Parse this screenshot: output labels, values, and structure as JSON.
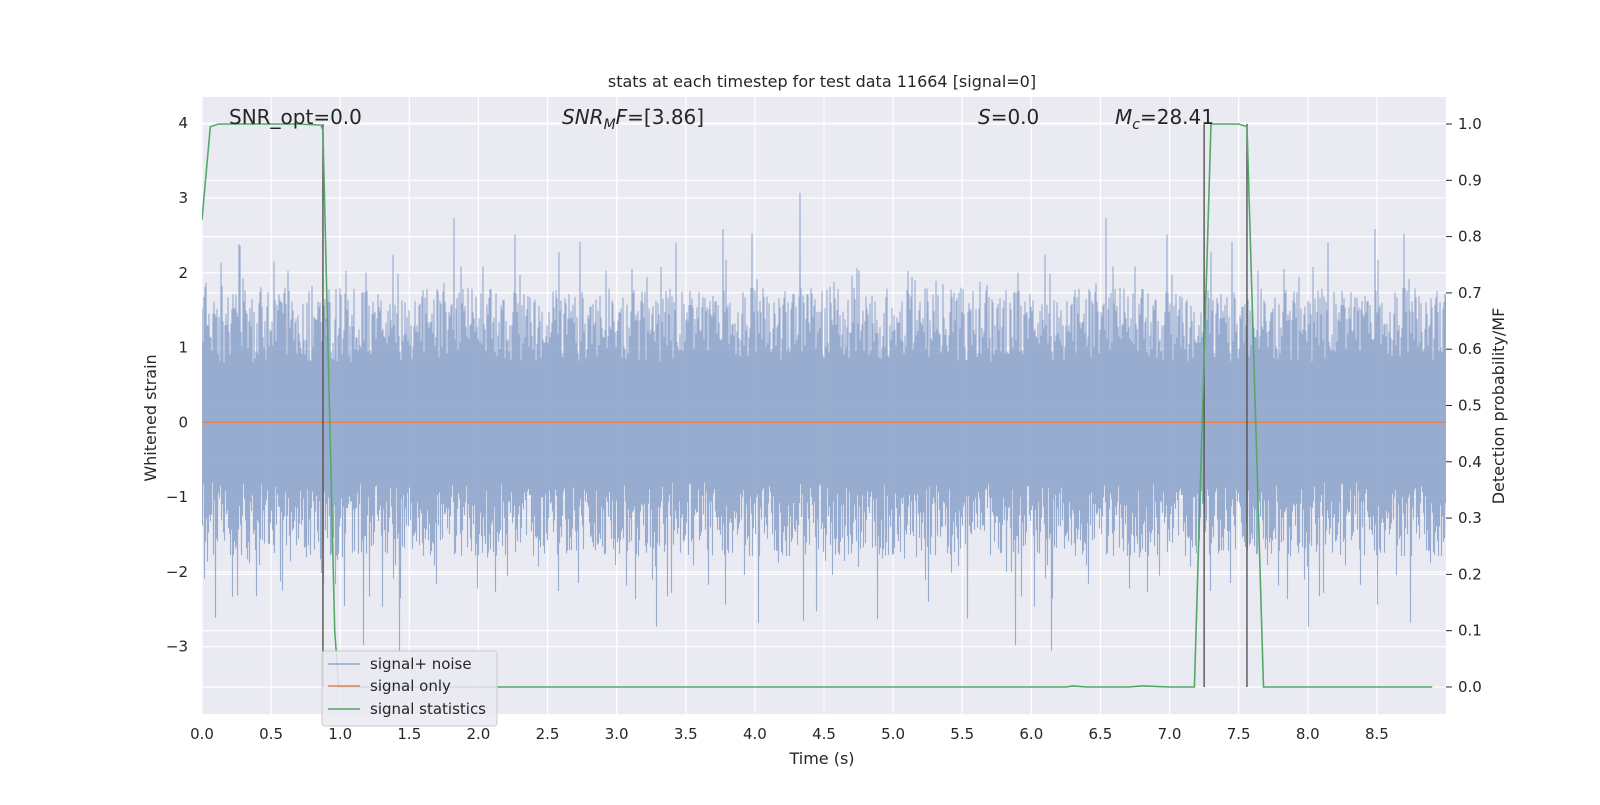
{
  "chart_data": {
    "type": "line",
    "title": "stats at each timestep for test data 11664 [signal=0]",
    "xlabel": "Time (s)",
    "ylabel": "Whitened strain",
    "y2label": "Detection probability/MF",
    "xlim": [
      0.0,
      9.0
    ],
    "ylim": [
      -3.9,
      4.35
    ],
    "y2lim": [
      -0.048,
      1.048
    ],
    "grid": true,
    "legend_position": "lower-left",
    "x_ticks": [
      "0.0",
      "0.5",
      "1.0",
      "1.5",
      "2.0",
      "2.5",
      "3.0",
      "3.5",
      "4.0",
      "4.5",
      "5.0",
      "5.5",
      "6.0",
      "6.5",
      "7.0",
      "7.5",
      "8.0",
      "8.5"
    ],
    "y_ticks": [
      "−3",
      "−2",
      "−1",
      "0",
      "1",
      "2",
      "3",
      "4"
    ],
    "y2_ticks": [
      "0.0",
      "0.1",
      "0.2",
      "0.3",
      "0.4",
      "0.5",
      "0.6",
      "0.7",
      "0.8",
      "0.9",
      "1.0"
    ],
    "annotations": {
      "snr_opt": "SNR_opt=0.0",
      "snr_mf_main": "SNR",
      "snr_mf_sub": "M",
      "snr_mf_rest": "F=[3.86]",
      "s_main": "S",
      "s_rest": "=0.0",
      "mc_main": "M",
      "mc_sub": "c",
      "mc_rest": "=28.41"
    },
    "vertical_markers_x": [
      0.875,
      7.25,
      7.56
    ],
    "series": [
      {
        "name": "signal+ noise",
        "color": "#8fa5cc",
        "axis": "left",
        "description_stats": {
          "envelope_typical": [
            -2.1,
            2.3
          ],
          "n_points": 9000
        }
      },
      {
        "name": "signal only",
        "color": "#dd8452",
        "axis": "left",
        "x": [
          0.0,
          9.0
        ],
        "y": [
          0.0,
          0.0
        ]
      },
      {
        "name": "signal statistics",
        "color": "#55a868",
        "axis": "right",
        "x": [
          0.0,
          0.06,
          0.12,
          0.2,
          0.3,
          0.5,
          0.7,
          0.86,
          0.875,
          0.96,
          0.99,
          1.0,
          2.0,
          3.0,
          4.0,
          5.0,
          6.0,
          6.25,
          6.3,
          6.4,
          6.7,
          6.8,
          7.0,
          7.18,
          7.3,
          7.35,
          7.5,
          7.56,
          7.68,
          7.7,
          8.0,
          8.5,
          8.9
        ],
        "y": [
          0.83,
          0.995,
          1.0,
          1.0,
          1.0,
          1.0,
          1.0,
          0.998,
          0.99,
          0.1,
          0.0,
          0.0,
          0.0,
          0.0,
          0.0,
          0.0,
          0.0,
          0.0,
          0.002,
          0.0,
          0.0,
          0.002,
          0.0,
          0.0,
          1.0,
          1.0,
          1.0,
          0.995,
          0.0,
          0.0,
          0.0,
          0.0,
          0.0
        ]
      }
    ]
  }
}
